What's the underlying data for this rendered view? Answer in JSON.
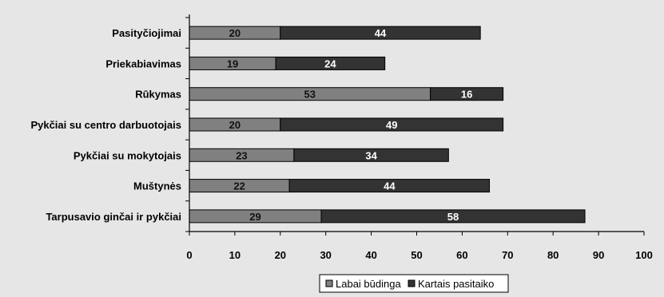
{
  "chart_data": {
    "type": "bar",
    "orientation": "horizontal",
    "stacked": true,
    "categories": [
      "Pasityčiojimai",
      "Priekabiavimas",
      "Rūkymas",
      "Pykčiai su centro darbuotojais",
      "Pykčiai su mokytojais",
      "Muštynės",
      "Tarpusavio ginčai ir pykčiai"
    ],
    "series": [
      {
        "name": "Labai būdinga",
        "color": "#808080",
        "values": [
          20,
          19,
          53,
          20,
          23,
          22,
          29
        ]
      },
      {
        "name": "Kartais pasitaiko",
        "color": "#333333",
        "values": [
          44,
          24,
          16,
          49,
          34,
          44,
          58
        ]
      }
    ],
    "xlim": [
      0,
      100
    ],
    "xticks": [
      0,
      10,
      20,
      30,
      40,
      50,
      60,
      70,
      80,
      90,
      100
    ],
    "grid": false,
    "legend_position": "bottom-right",
    "title": "",
    "xlabel": "",
    "ylabel": ""
  }
}
